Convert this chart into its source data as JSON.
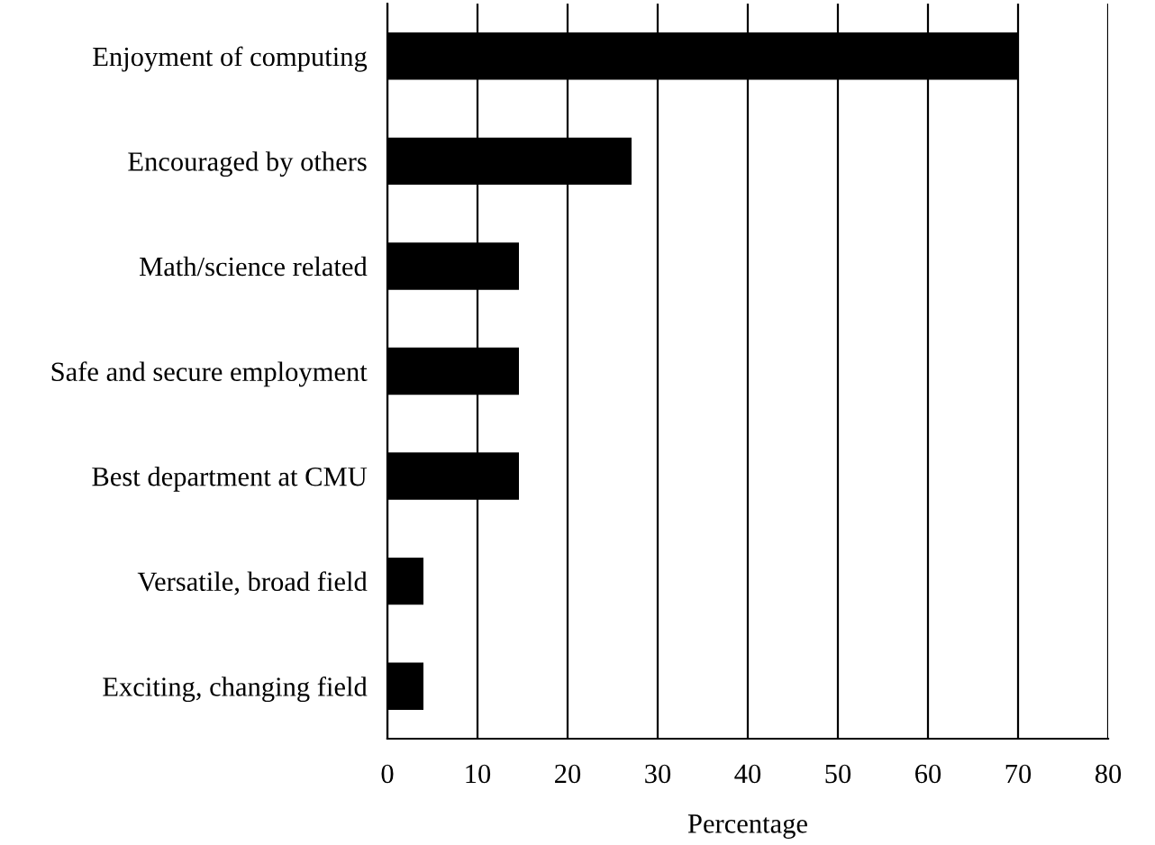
{
  "chart_data": {
    "type": "bar",
    "orientation": "horizontal",
    "xlabel": "Percentage",
    "categories": [
      "Enjoyment of computing",
      "Encouraged by others",
      "Math/science related",
      "Safe and secure employment",
      "Best department at CMU",
      "Versatile, broad field",
      "Exciting, changing field"
    ],
    "values": [
      70,
      27.1,
      14.6,
      14.6,
      14.6,
      4,
      4
    ],
    "color": "#000000",
    "xlim": [
      0,
      80
    ],
    "xticks": [
      0,
      10,
      20,
      30,
      40,
      50,
      60,
      70,
      80
    ],
    "grid": "x"
  }
}
